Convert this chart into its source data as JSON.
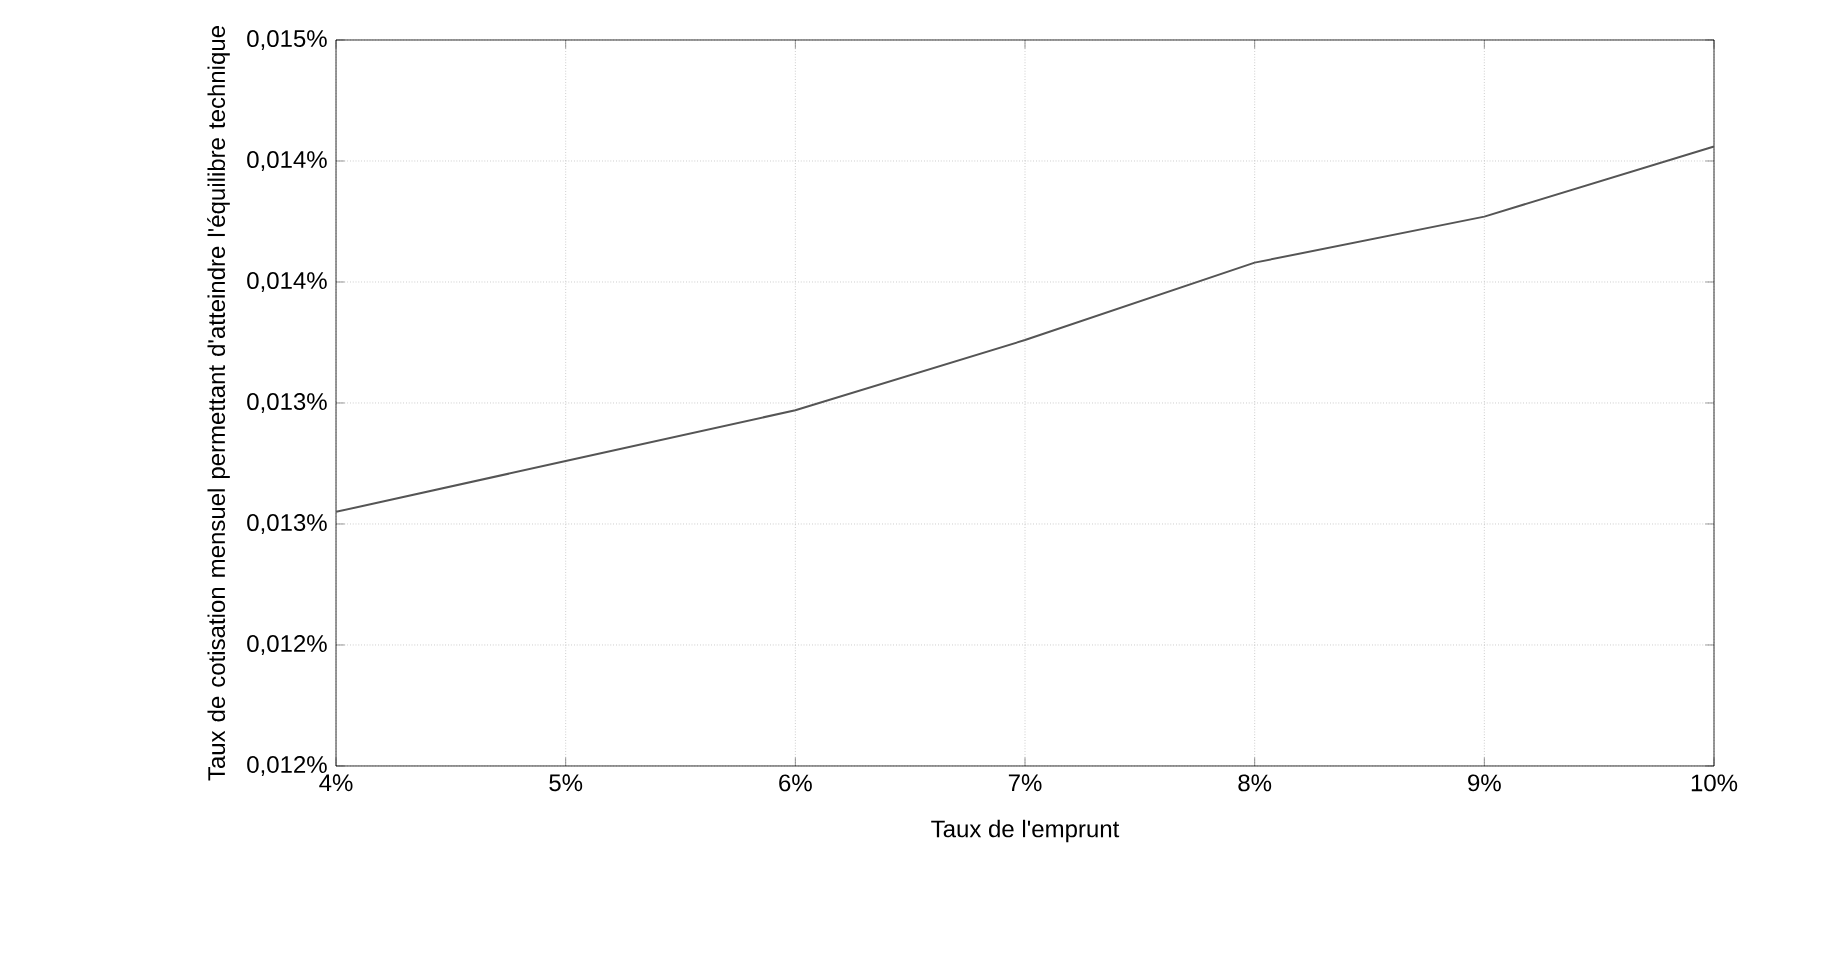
{
  "chart_data": {
    "type": "line",
    "xlabel": "Taux de l'emprunt",
    "ylabel": "Taux de cotisation mensuel permettant d'atteindre l'équilibre technique",
    "x": [
      4,
      5,
      6,
      7,
      8,
      9,
      10
    ],
    "series": [
      {
        "color": "#555555",
        "values": [
          0.01305,
          0.01326,
          0.01347,
          0.01376,
          0.01408,
          0.01427,
          0.01456
        ]
      }
    ],
    "xlim": [
      4,
      10
    ],
    "xticks": [
      {
        "value": 4,
        "label": "4%"
      },
      {
        "value": 5,
        "label": "5%"
      },
      {
        "value": 6,
        "label": "6%"
      },
      {
        "value": 7,
        "label": "7%"
      },
      {
        "value": 8,
        "label": "8%"
      },
      {
        "value": 9,
        "label": "9%"
      },
      {
        "value": 10,
        "label": "10%"
      }
    ],
    "ylim": [
      0.012,
      0.015
    ],
    "yticks": [
      {
        "value": 0.012,
        "label": "0,012%"
      },
      {
        "value": 0.0125,
        "label": "0,012%"
      },
      {
        "value": 0.013,
        "label": "0,013%"
      },
      {
        "value": 0.0135,
        "label": "0,013%"
      },
      {
        "value": 0.014,
        "label": "0,014%"
      },
      {
        "value": 0.0145,
        "label": "0,014%"
      },
      {
        "value": 0.015,
        "label": "0,015%"
      }
    ],
    "grid": true,
    "marker": "none",
    "line_style": "solid"
  }
}
